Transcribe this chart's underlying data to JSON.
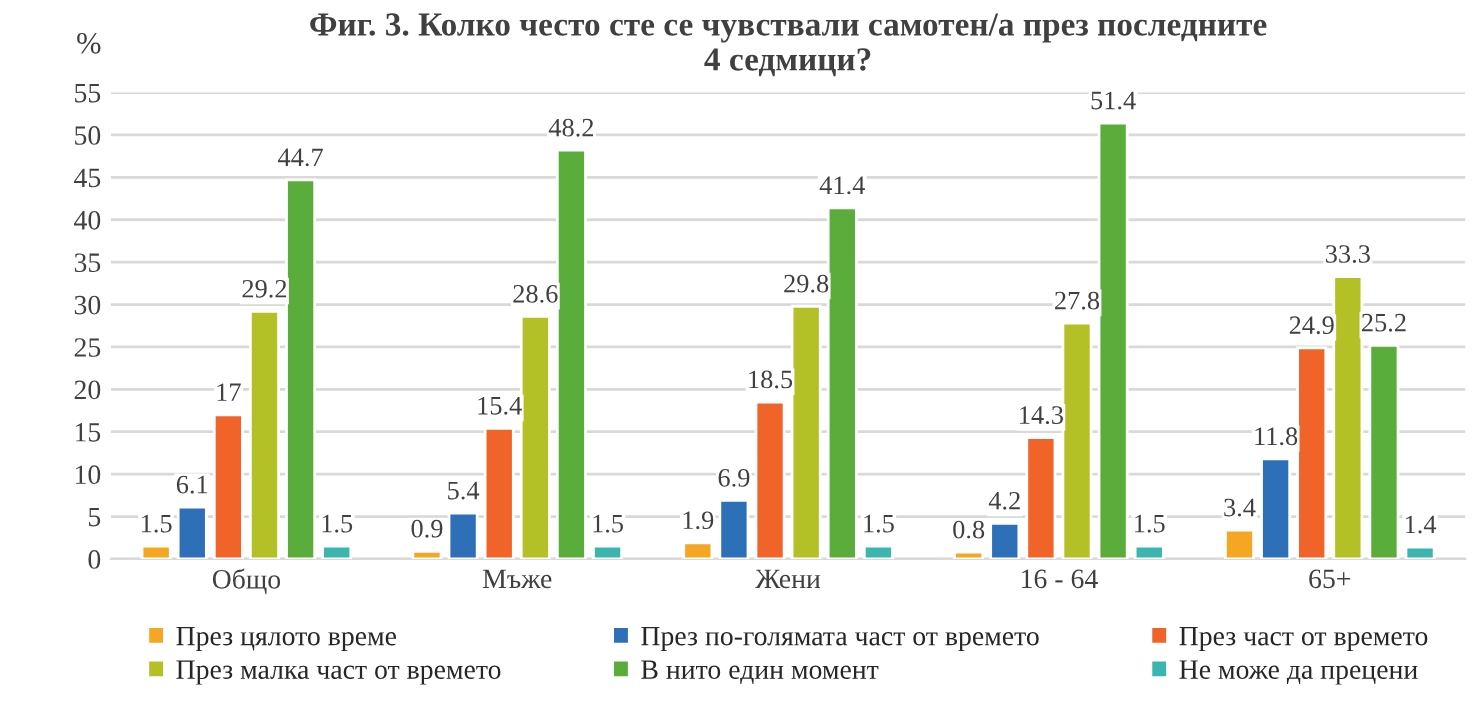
{
  "chart_data": {
    "type": "bar",
    "title": "Фиг. 3. Колко често сте се чувствали самотен/а през последните\n4 седмици?",
    "ylabel": "%",
    "categories": [
      "Общо",
      "Мъже",
      "Жени",
      "16 - 64",
      "65+"
    ],
    "series": [
      {
        "name": "През цялото време",
        "color": "#f5a623",
        "values": [
          1.5,
          0.9,
          1.9,
          0.8,
          3.4
        ]
      },
      {
        "name": "През по-голямата част от времето",
        "color": "#2e70b8",
        "values": [
          6.1,
          5.4,
          6.9,
          4.2,
          11.8
        ]
      },
      {
        "name": "През част от времето",
        "color": "#f0642a",
        "values": [
          17,
          15.4,
          18.5,
          14.3,
          24.9
        ]
      },
      {
        "name": "През малка част от времето",
        "color": "#b3c126",
        "values": [
          29.2,
          28.6,
          29.8,
          27.8,
          33.3
        ]
      },
      {
        "name": "В нито един момент",
        "color": "#5aad3a",
        "values": [
          44.7,
          48.2,
          41.4,
          51.4,
          25.2
        ]
      },
      {
        "name": "Не може да прецени",
        "color": "#3ab5b0",
        "values": [
          1.5,
          1.5,
          1.5,
          1.5,
          1.4
        ]
      }
    ],
    "ylim": [
      0,
      55
    ],
    "yticks": [
      0,
      5,
      10,
      15,
      20,
      25,
      30,
      35,
      40,
      45,
      50,
      55
    ],
    "grid": "y",
    "legend": "bottom",
    "data_labels": true
  }
}
